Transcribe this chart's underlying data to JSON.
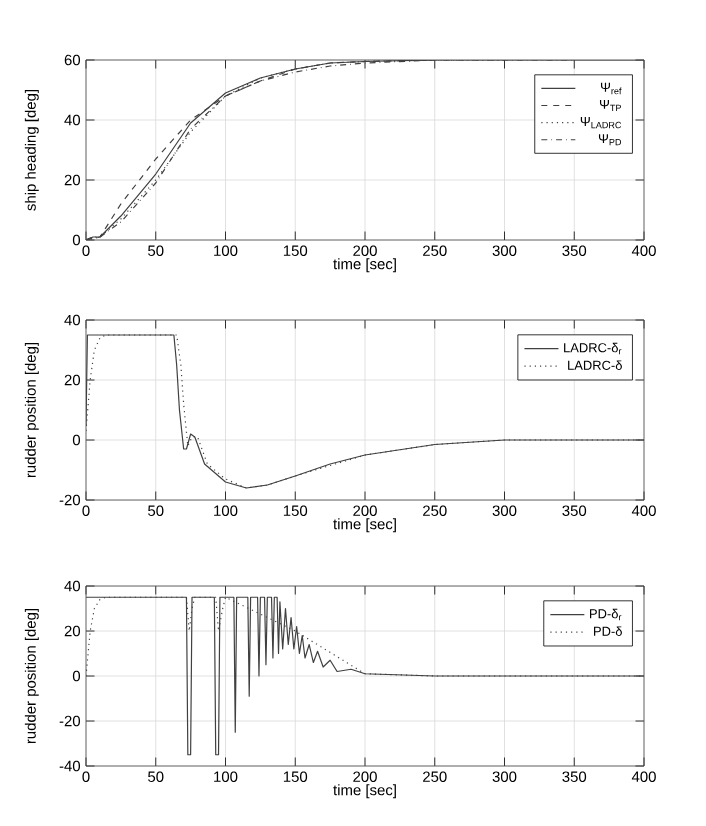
{
  "chart_data": [
    {
      "type": "line",
      "xlabel": "time [sec]",
      "ylabel": "ship heading [deg]",
      "xlim": [
        0,
        400
      ],
      "ylim": [
        0,
        60
      ],
      "xticks": [
        0,
        50,
        100,
        150,
        200,
        250,
        300,
        350,
        400
      ],
      "yticks": [
        0,
        20,
        40,
        60
      ],
      "grid": true,
      "legend": "top right",
      "series": [
        {
          "name": "Ψ$_{ref}$",
          "color": "#404040",
          "line_style": "solid",
          "x": [
            0,
            5,
            10,
            25,
            50,
            75,
            100,
            125,
            150,
            175,
            200,
            250,
            300,
            400
          ],
          "values": [
            0,
            1,
            1,
            8,
            22,
            39,
            49,
            54,
            57,
            59,
            59.5,
            60,
            60,
            60
          ]
        },
        {
          "name": "Ψ$_{TP}$",
          "color": "#404040",
          "line_style": "dashed",
          "x": [
            0,
            10,
            25,
            50,
            75,
            100,
            125,
            150,
            175,
            200,
            250
          ],
          "values": [
            0,
            1,
            12,
            27,
            40,
            48,
            53,
            57,
            59,
            59.5,
            60
          ]
        },
        {
          "name": "Ψ$_{LADRC}$",
          "color": "#404040",
          "line_style": "dotted",
          "x": [
            0,
            10,
            25,
            50,
            75,
            100,
            125,
            150,
            175,
            200,
            250,
            300
          ],
          "values": [
            0,
            1,
            7,
            20,
            36,
            48,
            54,
            57,
            59,
            59.5,
            60,
            60
          ]
        },
        {
          "name": "Ψ$_{PD}$",
          "color": "#404040",
          "line_style": "dashdot",
          "x": [
            0,
            5,
            10,
            25,
            50,
            75,
            100,
            125,
            150,
            175,
            200,
            250,
            300,
            350
          ],
          "values": [
            0,
            1,
            1,
            6,
            19,
            37,
            48,
            53,
            56,
            58,
            59,
            60,
            60,
            60
          ]
        }
      ]
    },
    {
      "type": "line",
      "xlabel": "time [sec]",
      "ylabel": "rudder position [deg]",
      "xlim": [
        0,
        400
      ],
      "ylim": [
        -20,
        40
      ],
      "xticks": [
        0,
        50,
        100,
        150,
        200,
        250,
        300,
        350,
        400
      ],
      "yticks": [
        -20,
        0,
        20,
        40
      ],
      "grid": true,
      "legend": "top right",
      "series": [
        {
          "name": "LADRC-δ$_{r}$",
          "color": "#404040",
          "line_style": "solid",
          "x": [
            0,
            1,
            63,
            65,
            67,
            70,
            72,
            75,
            78,
            85,
            100,
            115,
            130,
            150,
            175,
            200,
            250,
            300,
            350,
            400
          ],
          "values": [
            5,
            35,
            35,
            25,
            10,
            -3,
            -3,
            2,
            1,
            -8,
            -14,
            -16,
            -15,
            -12,
            -8,
            -5,
            -1.5,
            0,
            0,
            0
          ]
        },
        {
          "name": "LADRC-δ",
          "color": "#404040",
          "line_style": "dotted",
          "x": [
            0,
            3,
            6,
            10,
            14,
            65,
            68,
            70,
            73,
            76,
            80,
            87,
            100,
            115,
            130,
            150,
            200,
            250,
            300,
            400
          ],
          "values": [
            3,
            20,
            30,
            34,
            35,
            35,
            25,
            12,
            -2,
            1,
            1,
            -8,
            -13,
            -16,
            -15,
            -12,
            -5,
            -1.5,
            0,
            0
          ]
        }
      ]
    },
    {
      "type": "line",
      "xlabel": "time [sec]",
      "ylabel": "rudder position [deg]",
      "xlim": [
        0,
        400
      ],
      "ylim": [
        -40,
        40
      ],
      "xticks": [
        0,
        50,
        100,
        150,
        200,
        250,
        300,
        350,
        400
      ],
      "yticks": [
        -40,
        -20,
        0,
        20,
        40
      ],
      "grid": true,
      "legend": "top right",
      "series": [
        {
          "name": "PD-δ$_{r}$",
          "color": "#404040",
          "line_style": "solid",
          "x": [
            0,
            72,
            73,
            75,
            76,
            92,
            93,
            95,
            96,
            106,
            107,
            108,
            116,
            117,
            118,
            123,
            124,
            125,
            128,
            129,
            130,
            133,
            134,
            135,
            137,
            138,
            139,
            141,
            143,
            145,
            147,
            149,
            151,
            153,
            155,
            157,
            160,
            163,
            166,
            170,
            175,
            180,
            190,
            200,
            250,
            400
          ],
          "values": [
            35,
            35,
            -35,
            -35,
            35,
            35,
            -35,
            -35,
            35,
            35,
            -25,
            35,
            35,
            -9,
            35,
            35,
            0,
            35,
            35,
            5,
            35,
            35,
            8,
            35,
            35,
            10,
            33,
            12,
            30,
            14,
            26,
            12,
            22,
            10,
            18,
            8,
            14,
            6,
            11,
            4,
            7,
            2,
            3,
            1,
            0,
            0
          ]
        },
        {
          "name": "PD-δ",
          "color": "#404040",
          "line_style": "dotted",
          "x": [
            0,
            3,
            6,
            10,
            14,
            72,
            74,
            76,
            78,
            93,
            95,
            98,
            100,
            150,
            200,
            250,
            400
          ],
          "values": [
            0,
            20,
            30,
            34,
            35,
            35,
            20,
            30,
            35,
            35,
            20,
            30,
            35,
            20,
            1,
            0,
            0
          ]
        }
      ]
    }
  ]
}
